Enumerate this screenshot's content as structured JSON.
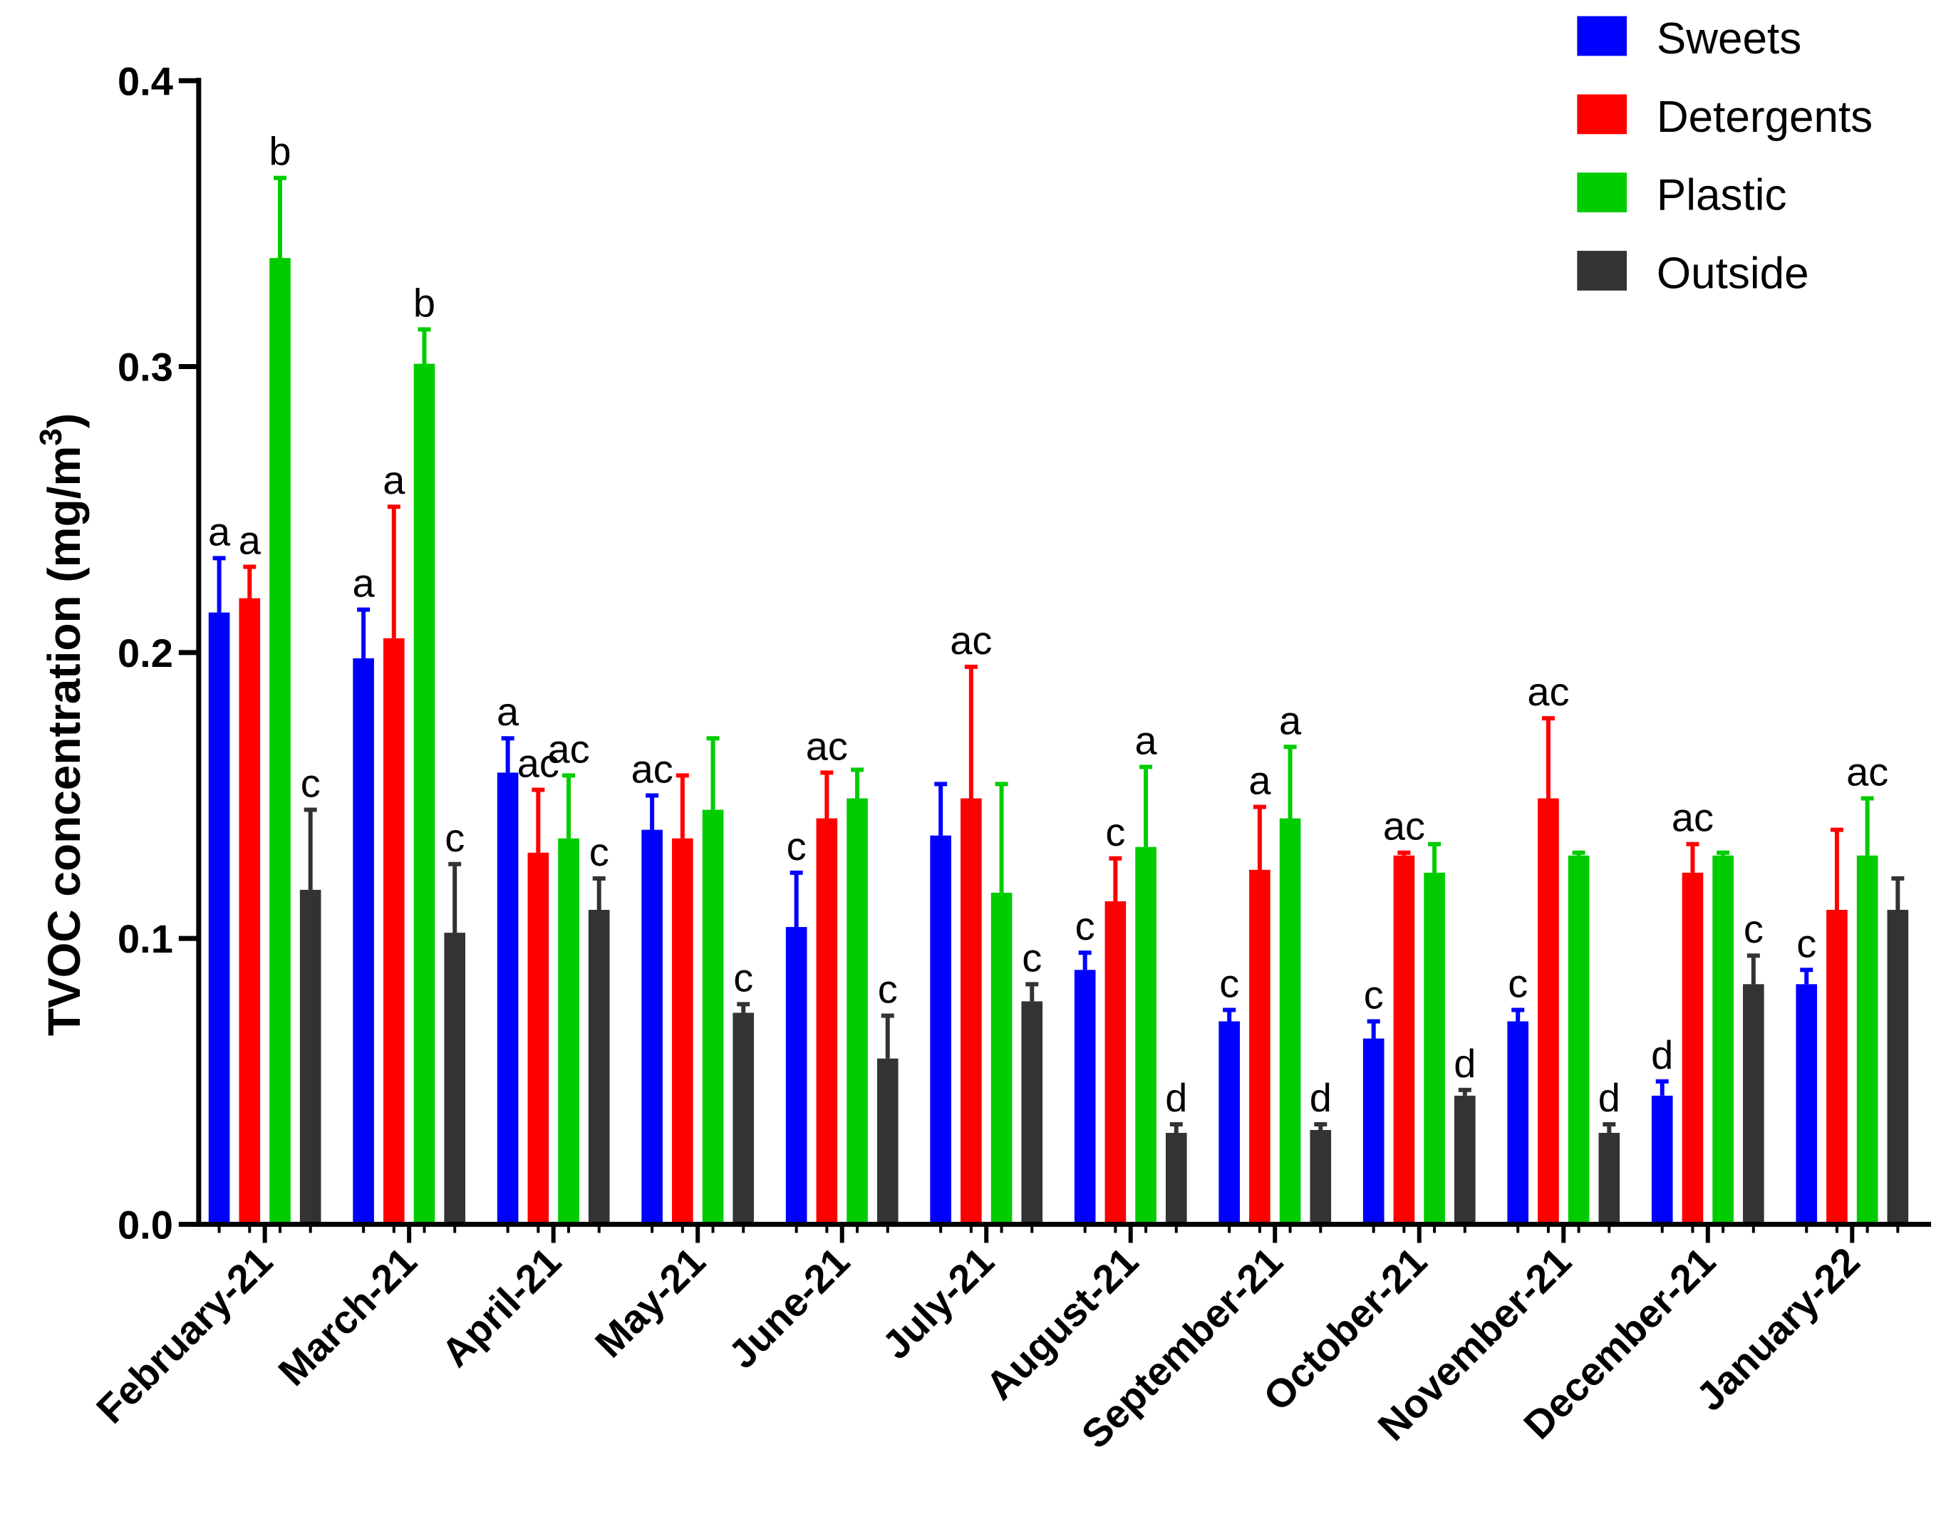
{
  "chart_data": {
    "type": "bar",
    "title": "",
    "xlabel": "",
    "ylabel": "TVOC concentration (mg/m",
    "ylabel_superscript": "3",
    "ylabel_suffix": ")",
    "ylim": [
      0,
      0.4
    ],
    "yticks": [
      "0.0",
      "0.1",
      "0.2",
      "0.3",
      "0.4"
    ],
    "ytick_values": [
      0,
      0.1,
      0.2,
      0.3,
      0.4
    ],
    "legend_position": "top-right",
    "categories": [
      "February-21",
      "March-21",
      "April-21",
      "May-21",
      "June-21",
      "July-21",
      "August-21",
      "September-21",
      "October-21",
      "November-21",
      "December-21",
      "January-22"
    ],
    "series": [
      {
        "name": "Sweets",
        "color": "#0000ff",
        "values": [
          0.214,
          0.198,
          0.158,
          0.138,
          0.104,
          0.136,
          0.089,
          0.071,
          0.065,
          0.071,
          0.045,
          0.084
        ],
        "errors": [
          0.019,
          0.017,
          0.012,
          0.012,
          0.019,
          0.018,
          0.006,
          0.004,
          0.006,
          0.004,
          0.005,
          0.005
        ],
        "annotations": [
          "a",
          "a",
          "a",
          "ac",
          "c",
          "",
          "c",
          "c",
          "c",
          "c",
          "d",
          "c"
        ]
      },
      {
        "name": "Detergents",
        "color": "#ff0000",
        "values": [
          0.219,
          0.205,
          0.13,
          0.135,
          0.142,
          0.149,
          0.113,
          0.124,
          0.129,
          0.149,
          0.123,
          0.11
        ],
        "errors": [
          0.011,
          0.046,
          0.022,
          0.022,
          0.016,
          0.046,
          0.015,
          0.022,
          0.001,
          0.028,
          0.01,
          0.028
        ],
        "annotations": [
          "a",
          "a",
          "ac",
          "",
          "ac",
          "ac",
          "c",
          "a",
          "ac",
          "ac",
          "ac",
          ""
        ]
      },
      {
        "name": "Plastic",
        "color": "#00cc00",
        "values": [
          0.338,
          0.301,
          0.135,
          0.145,
          0.149,
          0.116,
          0.132,
          0.142,
          0.123,
          0.129,
          0.129,
          0.129
        ],
        "errors": [
          0.028,
          0.012,
          0.022,
          0.025,
          0.01,
          0.038,
          0.028,
          0.025,
          0.01,
          0.001,
          0.001,
          0.02
        ],
        "annotations": [
          "b",
          "b",
          "ac",
          "",
          "",
          "",
          "a",
          "a",
          "",
          "",
          "",
          "ac"
        ]
      },
      {
        "name": "Outside",
        "color": "#333333",
        "values": [
          0.117,
          0.102,
          0.11,
          0.074,
          0.058,
          0.078,
          0.032,
          0.033,
          0.045,
          0.032,
          0.084,
          0.11
        ],
        "errors": [
          0.028,
          0.024,
          0.011,
          0.003,
          0.015,
          0.006,
          0.003,
          0.002,
          0.002,
          0.003,
          0.01,
          0.011
        ],
        "annotations": [
          "c",
          "c",
          "c",
          "c",
          "c",
          "c",
          "d",
          "d",
          "d",
          "d",
          "c",
          ""
        ]
      }
    ]
  }
}
